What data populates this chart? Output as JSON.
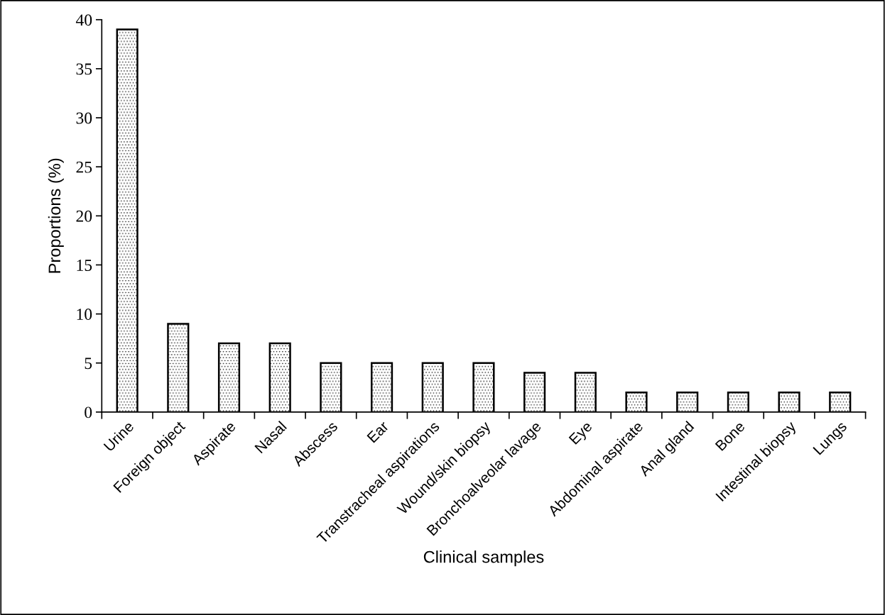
{
  "chart_data": {
    "type": "bar",
    "xlabel": "Clinical samples",
    "ylabel": "Proportions (%)",
    "categories": [
      "Urine",
      "Foreign object",
      "Aspirate",
      "Nasal",
      "Abscess",
      "Ear",
      "Transtracheal aspirations",
      "Wound/skin biopsy",
      "Bronchoalveolar lavage",
      "Eye",
      "Abdominal aspirate",
      "Anal gland",
      "Bone",
      "Intestinal biopsy",
      "Lungs"
    ],
    "values": [
      39,
      9,
      7,
      7,
      5,
      5,
      5,
      5,
      4,
      4,
      2,
      2,
      2,
      2,
      2
    ],
    "color": "#000000",
    "ylim": [
      0,
      40
    ],
    "yticks": [
      0,
      5,
      10,
      15,
      20,
      25,
      30,
      35,
      40
    ],
    "grid": false,
    "legend": false
  }
}
